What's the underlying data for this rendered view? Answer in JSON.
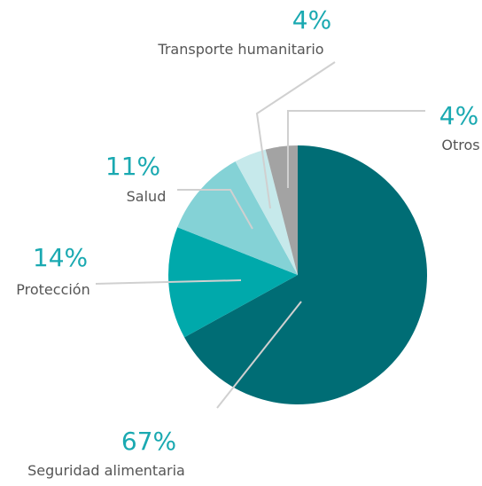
{
  "chart_data": {
    "type": "pie",
    "categories": [
      "Seguridad alimentaria",
      "Protección",
      "Salud",
      "Transporte humanitario",
      "Otros"
    ],
    "values": [
      67,
      14,
      11,
      4,
      4
    ],
    "value_labels": [
      "67%",
      "14%",
      "11%",
      "4%",
      "4%"
    ],
    "colors": [
      "#006d75",
      "#00a9ab",
      "#84d2d6",
      "#c6e9eb",
      "#a3a3a3"
    ]
  }
}
